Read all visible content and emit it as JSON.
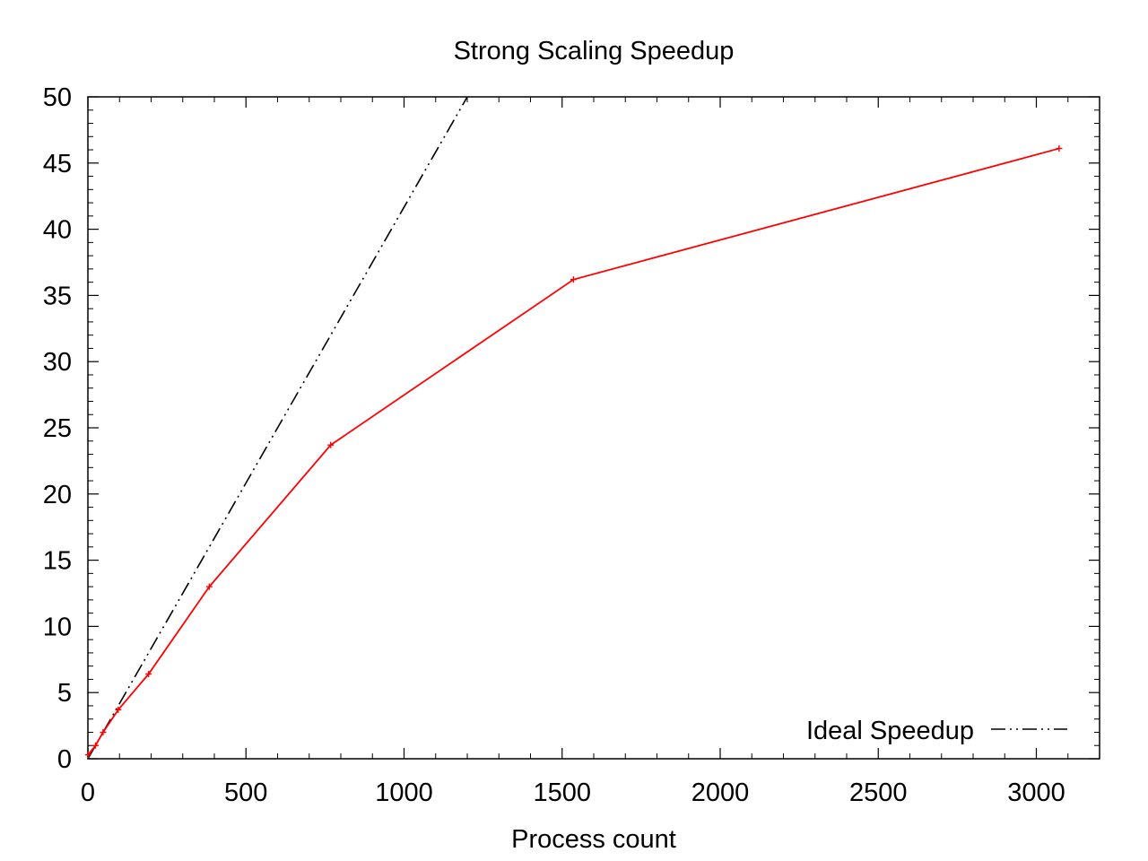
{
  "chart_data": {
    "type": "line",
    "title": "Strong Scaling Speedup",
    "xlabel": "Process count",
    "ylabel": "",
    "xlim": [
      0,
      3200
    ],
    "ylim": [
      0,
      50
    ],
    "x_ticks": [
      0,
      500,
      1000,
      1500,
      2000,
      2500,
      3000
    ],
    "y_ticks": [
      0,
      5,
      10,
      15,
      20,
      25,
      30,
      35,
      40,
      45,
      50
    ],
    "x_tick_labels": [
      "0",
      "500",
      "1000",
      "1500",
      "2000",
      "2500",
      "3000"
    ],
    "y_tick_labels": [
      "0",
      "5",
      "10",
      "15",
      "20",
      "25",
      "30",
      "35",
      "40",
      "45",
      "50"
    ],
    "grid": false,
    "legend_position": "bottom-right",
    "series": [
      {
        "color": "#ff0000",
        "style": "solid",
        "marker": "plus",
        "x": [
          1,
          24,
          48,
          96,
          192,
          384,
          768,
          1536,
          3072
        ],
        "y": [
          0.3,
          1.0,
          2.0,
          3.7,
          6.4,
          13.0,
          23.7,
          36.2,
          46.1
        ]
      },
      {
        "name": "Ideal Speedup",
        "color": "#000000",
        "style": "dash-dot-dot",
        "marker": "none",
        "x": [
          0,
          1200
        ],
        "y": [
          0,
          50
        ]
      }
    ]
  }
}
